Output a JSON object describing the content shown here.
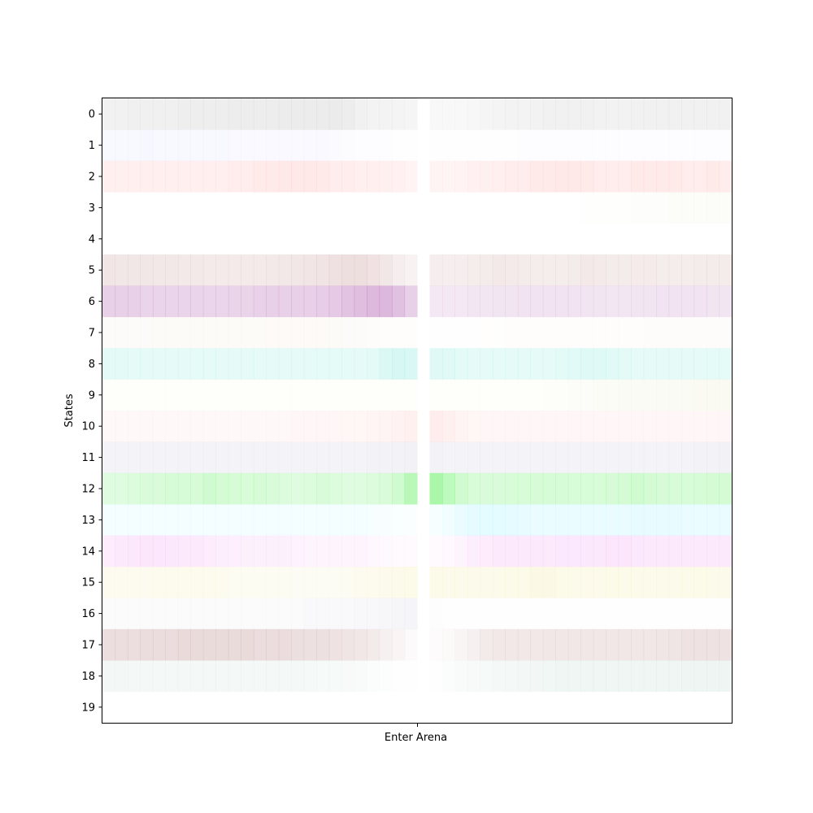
{
  "chart_data": {
    "type": "heatmap",
    "title": "",
    "xlabel": "",
    "ylabel": "States",
    "x_ticks": [
      {
        "label": "Enter Arena",
        "position": "center"
      }
    ],
    "y_ticks": [
      "0",
      "1",
      "2",
      "3",
      "4",
      "5",
      "6",
      "7",
      "8",
      "9",
      "10",
      "11",
      "12",
      "13",
      "14",
      "15",
      "16",
      "17",
      "18",
      "19"
    ],
    "grid": false,
    "legend": "none",
    "columns": 50,
    "event_column": 25,
    "rows": [
      {
        "state": "0",
        "color": "#c8c8c8",
        "intensity": [
          0.25,
          0.25,
          0.27,
          0.28,
          0.28,
          0.28,
          0.3,
          0.3,
          0.3,
          0.3,
          0.32,
          0.32,
          0.33,
          0.33,
          0.34,
          0.34,
          0.35,
          0.35,
          0.36,
          0.32,
          0.25,
          0.22,
          0.22,
          0.2,
          0.18,
          0.0,
          0.12,
          0.12,
          0.12,
          0.15,
          0.18,
          0.2,
          0.22,
          0.22,
          0.24,
          0.25,
          0.25,
          0.25,
          0.25,
          0.24,
          0.24,
          0.24,
          0.25,
          0.25,
          0.26,
          0.26,
          0.26,
          0.25,
          0.25,
          0.25
        ]
      },
      {
        "state": "1",
        "color": "#c8c8ff",
        "intensity": [
          0.12,
          0.12,
          0.13,
          0.14,
          0.12,
          0.12,
          0.12,
          0.12,
          0.12,
          0.12,
          0.1,
          0.1,
          0.1,
          0.1,
          0.1,
          0.1,
          0.1,
          0.1,
          0.08,
          0.06,
          0.04,
          0.03,
          0.03,
          0.02,
          0.02,
          0.0,
          0.02,
          0.02,
          0.02,
          0.02,
          0.02,
          0.02,
          0.02,
          0.03,
          0.03,
          0.03,
          0.03,
          0.04,
          0.04,
          0.04,
          0.04,
          0.04,
          0.04,
          0.04,
          0.04,
          0.04,
          0.04,
          0.04,
          0.04,
          0.04
        ]
      },
      {
        "state": "2",
        "color": "#ffb4b4",
        "intensity": [
          0.2,
          0.2,
          0.22,
          0.22,
          0.22,
          0.22,
          0.22,
          0.22,
          0.22,
          0.22,
          0.25,
          0.25,
          0.28,
          0.28,
          0.3,
          0.3,
          0.3,
          0.28,
          0.26,
          0.24,
          0.22,
          0.22,
          0.2,
          0.18,
          0.16,
          0.0,
          0.15,
          0.15,
          0.16,
          0.18,
          0.2,
          0.22,
          0.24,
          0.26,
          0.28,
          0.28,
          0.3,
          0.3,
          0.28,
          0.26,
          0.26,
          0.26,
          0.28,
          0.28,
          0.28,
          0.28,
          0.26,
          0.26,
          0.28,
          0.26
        ]
      },
      {
        "state": "3",
        "color": "#e6e6c8",
        "intensity": [
          0,
          0,
          0,
          0,
          0,
          0,
          0,
          0,
          0,
          0,
          0,
          0,
          0,
          0,
          0,
          0,
          0,
          0,
          0,
          0,
          0,
          0,
          0,
          0,
          0,
          0,
          0,
          0,
          0,
          0,
          0,
          0,
          0,
          0,
          0,
          0,
          0,
          0,
          0.03,
          0.04,
          0.05,
          0.06,
          0.08,
          0.08,
          0.08,
          0.1,
          0.12,
          0.12,
          0.12,
          0.12
        ]
      },
      {
        "state": "4",
        "color": "#ffffff",
        "intensity": [
          0,
          0,
          0,
          0,
          0,
          0,
          0,
          0,
          0,
          0,
          0,
          0,
          0,
          0,
          0,
          0,
          0,
          0,
          0,
          0,
          0,
          0,
          0,
          0,
          0,
          0,
          0,
          0,
          0,
          0,
          0,
          0,
          0,
          0,
          0,
          0,
          0,
          0,
          0,
          0,
          0,
          0,
          0,
          0,
          0,
          0,
          0,
          0,
          0,
          0
        ]
      },
      {
        "state": "5",
        "color": "#d2aaaa",
        "intensity": [
          0.3,
          0.28,
          0.28,
          0.28,
          0.27,
          0.27,
          0.26,
          0.26,
          0.25,
          0.25,
          0.25,
          0.25,
          0.25,
          0.26,
          0.27,
          0.28,
          0.3,
          0.32,
          0.35,
          0.38,
          0.38,
          0.34,
          0.28,
          0.2,
          0.15,
          0.0,
          0.2,
          0.2,
          0.2,
          0.22,
          0.24,
          0.26,
          0.25,
          0.24,
          0.22,
          0.22,
          0.22,
          0.24,
          0.26,
          0.25,
          0.24,
          0.24,
          0.23,
          0.23,
          0.22,
          0.22,
          0.22,
          0.24,
          0.24,
          0.24
        ]
      },
      {
        "state": "6",
        "color": "#b464b4",
        "intensity": [
          0.3,
          0.3,
          0.3,
          0.28,
          0.28,
          0.28,
          0.28,
          0.28,
          0.27,
          0.27,
          0.28,
          0.28,
          0.29,
          0.3,
          0.3,
          0.3,
          0.3,
          0.32,
          0.35,
          0.38,
          0.42,
          0.45,
          0.46,
          0.4,
          0.3,
          0.0,
          0.15,
          0.15,
          0.15,
          0.16,
          0.16,
          0.17,
          0.17,
          0.18,
          0.18,
          0.18,
          0.18,
          0.18,
          0.17,
          0.17,
          0.16,
          0.16,
          0.17,
          0.17,
          0.18,
          0.18,
          0.18,
          0.18,
          0.17,
          0.17
        ]
      },
      {
        "state": "7",
        "color": "#f0dcc8",
        "intensity": [
          0.1,
          0.1,
          0.1,
          0.1,
          0.12,
          0.12,
          0.12,
          0.12,
          0.12,
          0.12,
          0.12,
          0.12,
          0.12,
          0.14,
          0.14,
          0.14,
          0.14,
          0.14,
          0.12,
          0.1,
          0.1,
          0.08,
          0.07,
          0.06,
          0.05,
          0.0,
          0.02,
          0.02,
          0.02,
          0.02,
          0.03,
          0.04,
          0.05,
          0.05,
          0.05,
          0.05,
          0.06,
          0.06,
          0.06,
          0.06,
          0.06,
          0.07,
          0.07,
          0.08,
          0.08,
          0.08,
          0.08,
          0.08,
          0.08,
          0.08
        ]
      },
      {
        "state": "8",
        "color": "#82e6dc",
        "intensity": [
          0.22,
          0.22,
          0.2,
          0.2,
          0.2,
          0.2,
          0.2,
          0.2,
          0.2,
          0.2,
          0.2,
          0.2,
          0.2,
          0.2,
          0.2,
          0.2,
          0.2,
          0.2,
          0.2,
          0.2,
          0.2,
          0.22,
          0.28,
          0.32,
          0.3,
          0.0,
          0.25,
          0.25,
          0.22,
          0.2,
          0.2,
          0.2,
          0.2,
          0.2,
          0.2,
          0.2,
          0.22,
          0.24,
          0.26,
          0.26,
          0.24,
          0.22,
          0.2,
          0.2,
          0.2,
          0.2,
          0.2,
          0.2,
          0.2,
          0.2
        ]
      },
      {
        "state": "9",
        "color": "#e6e6be",
        "intensity": [
          0.06,
          0.06,
          0.06,
          0.06,
          0.06,
          0.06,
          0.06,
          0.06,
          0.06,
          0.06,
          0.06,
          0.06,
          0.06,
          0.06,
          0.06,
          0.06,
          0.06,
          0.06,
          0.06,
          0.06,
          0.06,
          0.06,
          0.06,
          0.06,
          0.06,
          0.0,
          0.06,
          0.06,
          0.06,
          0.06,
          0.06,
          0.06,
          0.06,
          0.06,
          0.06,
          0.08,
          0.08,
          0.1,
          0.1,
          0.12,
          0.12,
          0.14,
          0.14,
          0.14,
          0.14,
          0.14,
          0.16,
          0.18,
          0.18,
          0.18
        ]
      },
      {
        "state": "10",
        "color": "#ffc8c8",
        "intensity": [
          0.12,
          0.12,
          0.12,
          0.12,
          0.12,
          0.12,
          0.12,
          0.12,
          0.12,
          0.12,
          0.12,
          0.12,
          0.13,
          0.13,
          0.13,
          0.14,
          0.14,
          0.15,
          0.15,
          0.16,
          0.17,
          0.18,
          0.2,
          0.24,
          0.28,
          0.0,
          0.32,
          0.28,
          0.2,
          0.16,
          0.15,
          0.15,
          0.15,
          0.14,
          0.14,
          0.14,
          0.14,
          0.14,
          0.14,
          0.14,
          0.14,
          0.14,
          0.14,
          0.14,
          0.14,
          0.14,
          0.14,
          0.14,
          0.14,
          0.14
        ]
      },
      {
        "state": "11",
        "color": "#c8c8dc",
        "intensity": [
          0.2,
          0.2,
          0.2,
          0.2,
          0.2,
          0.2,
          0.2,
          0.2,
          0.2,
          0.2,
          0.2,
          0.2,
          0.2,
          0.2,
          0.2,
          0.2,
          0.2,
          0.2,
          0.2,
          0.2,
          0.2,
          0.22,
          0.22,
          0.24,
          0.26,
          0.0,
          0.22,
          0.2,
          0.2,
          0.2,
          0.2,
          0.2,
          0.2,
          0.2,
          0.2,
          0.2,
          0.2,
          0.2,
          0.2,
          0.2,
          0.2,
          0.2,
          0.2,
          0.2,
          0.2,
          0.2,
          0.2,
          0.22,
          0.24,
          0.26
        ]
      },
      {
        "state": "12",
        "color": "#64f064",
        "intensity": [
          0.2,
          0.2,
          0.22,
          0.24,
          0.24,
          0.26,
          0.26,
          0.26,
          0.3,
          0.28,
          0.26,
          0.25,
          0.26,
          0.24,
          0.22,
          0.2,
          0.22,
          0.24,
          0.22,
          0.2,
          0.2,
          0.22,
          0.24,
          0.3,
          0.45,
          0.0,
          0.55,
          0.42,
          0.3,
          0.25,
          0.24,
          0.24,
          0.25,
          0.25,
          0.26,
          0.26,
          0.26,
          0.25,
          0.25,
          0.25,
          0.26,
          0.28,
          0.3,
          0.28,
          0.26,
          0.25,
          0.25,
          0.26,
          0.28,
          0.28
        ]
      },
      {
        "state": "13",
        "color": "#96f0ff",
        "intensity": [
          0.1,
          0.1,
          0.1,
          0.1,
          0.1,
          0.1,
          0.1,
          0.1,
          0.1,
          0.1,
          0.1,
          0.1,
          0.1,
          0.1,
          0.1,
          0.1,
          0.1,
          0.1,
          0.1,
          0.1,
          0.1,
          0.08,
          0.07,
          0.06,
          0.05,
          0.0,
          0.08,
          0.12,
          0.2,
          0.24,
          0.26,
          0.26,
          0.24,
          0.22,
          0.2,
          0.2,
          0.2,
          0.2,
          0.2,
          0.2,
          0.2,
          0.2,
          0.22,
          0.22,
          0.22,
          0.22,
          0.2,
          0.2,
          0.2,
          0.2
        ]
      },
      {
        "state": "14",
        "color": "#f096f0",
        "intensity": [
          0.18,
          0.2,
          0.22,
          0.24,
          0.24,
          0.22,
          0.2,
          0.2,
          0.18,
          0.16,
          0.15,
          0.14,
          0.14,
          0.14,
          0.14,
          0.12,
          0.1,
          0.1,
          0.1,
          0.1,
          0.1,
          0.08,
          0.06,
          0.05,
          0.05,
          0.0,
          0.05,
          0.06,
          0.1,
          0.16,
          0.18,
          0.2,
          0.2,
          0.2,
          0.2,
          0.2,
          0.22,
          0.22,
          0.22,
          0.22,
          0.24,
          0.24,
          0.22,
          0.2,
          0.2,
          0.2,
          0.2,
          0.2,
          0.2,
          0.2
        ]
      },
      {
        "state": "15",
        "color": "#f0e696",
        "intensity": [
          0.14,
          0.14,
          0.14,
          0.14,
          0.16,
          0.16,
          0.16,
          0.16,
          0.16,
          0.14,
          0.12,
          0.12,
          0.12,
          0.12,
          0.12,
          0.1,
          0.1,
          0.1,
          0.1,
          0.12,
          0.14,
          0.16,
          0.18,
          0.2,
          0.22,
          0.0,
          0.22,
          0.2,
          0.2,
          0.2,
          0.2,
          0.2,
          0.22,
          0.22,
          0.24,
          0.24,
          0.22,
          0.2,
          0.2,
          0.2,
          0.22,
          0.22,
          0.2,
          0.2,
          0.2,
          0.2,
          0.22,
          0.22,
          0.2,
          0.2
        ]
      },
      {
        "state": "16",
        "color": "#c8c8dc",
        "intensity": [
          0.08,
          0.08,
          0.08,
          0.08,
          0.08,
          0.08,
          0.08,
          0.08,
          0.08,
          0.08,
          0.08,
          0.08,
          0.08,
          0.08,
          0.08,
          0.08,
          0.1,
          0.1,
          0.1,
          0.1,
          0.12,
          0.12,
          0.14,
          0.16,
          0.18,
          0.0,
          0.04,
          0.02,
          0.02,
          0.02,
          0.02,
          0.02,
          0.02,
          0.02,
          0.02,
          0.02,
          0.02,
          0.02,
          0.02,
          0.02,
          0.02,
          0.02,
          0.02,
          0.02,
          0.02,
          0.02,
          0.02,
          0.02,
          0.02,
          0.02
        ]
      },
      {
        "state": "17",
        "color": "#c8a0a0",
        "intensity": [
          0.35,
          0.35,
          0.35,
          0.36,
          0.36,
          0.36,
          0.38,
          0.38,
          0.38,
          0.38,
          0.38,
          0.38,
          0.36,
          0.36,
          0.36,
          0.34,
          0.33,
          0.32,
          0.3,
          0.28,
          0.25,
          0.22,
          0.16,
          0.1,
          0.05,
          0.0,
          0.04,
          0.06,
          0.1,
          0.16,
          0.22,
          0.24,
          0.24,
          0.24,
          0.24,
          0.25,
          0.25,
          0.25,
          0.25,
          0.25,
          0.25,
          0.25,
          0.25,
          0.25,
          0.26,
          0.28,
          0.3,
          0.3,
          0.3,
          0.3
        ]
      },
      {
        "state": "18",
        "color": "#b4d2c8",
        "intensity": [
          0.16,
          0.16,
          0.15,
          0.15,
          0.15,
          0.15,
          0.15,
          0.15,
          0.15,
          0.15,
          0.15,
          0.15,
          0.15,
          0.15,
          0.14,
          0.14,
          0.13,
          0.12,
          0.12,
          0.1,
          0.08,
          0.06,
          0.04,
          0.03,
          0.02,
          0.0,
          0.03,
          0.05,
          0.08,
          0.1,
          0.12,
          0.14,
          0.15,
          0.16,
          0.17,
          0.18,
          0.2,
          0.2,
          0.2,
          0.2,
          0.2,
          0.2,
          0.2,
          0.2,
          0.2,
          0.2,
          0.22,
          0.22,
          0.22,
          0.22
        ]
      },
      {
        "state": "19",
        "color": "#ffffff",
        "intensity": [
          0,
          0,
          0,
          0,
          0,
          0,
          0,
          0,
          0,
          0,
          0,
          0,
          0,
          0,
          0,
          0,
          0,
          0,
          0,
          0,
          0,
          0,
          0,
          0,
          0,
          0,
          0,
          0,
          0,
          0,
          0,
          0,
          0,
          0,
          0,
          0,
          0,
          0,
          0,
          0,
          0,
          0,
          0,
          0,
          0,
          0,
          0,
          0,
          0,
          0
        ]
      }
    ]
  }
}
